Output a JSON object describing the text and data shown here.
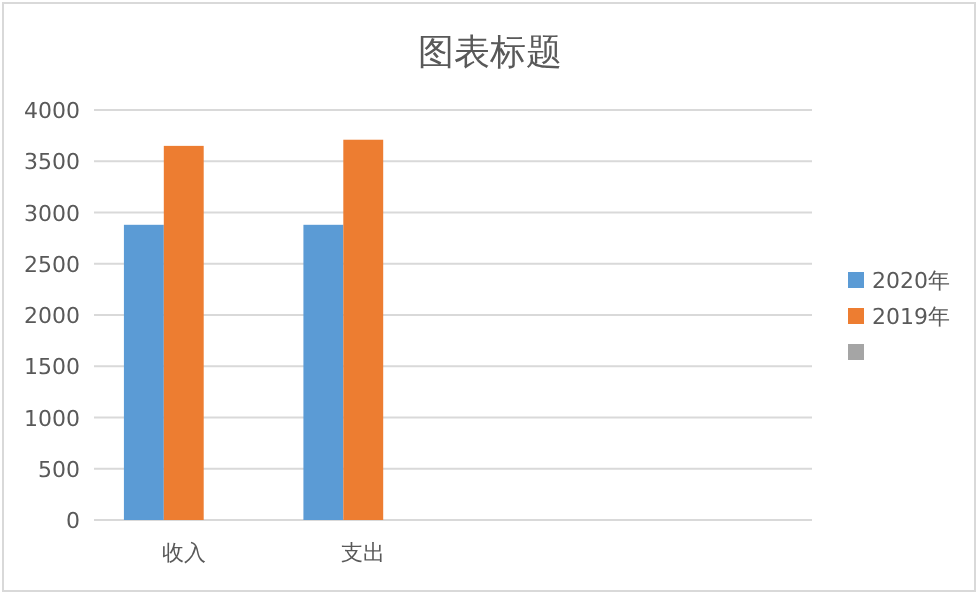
{
  "chart_data": {
    "type": "bar",
    "title": "图表标题",
    "categories": [
      "收入",
      "支出",
      null,
      null
    ],
    "series": [
      {
        "name": "2020年",
        "color": "#5b9bd5",
        "values": [
          2880,
          2880,
          null,
          null
        ]
      },
      {
        "name": "2019年",
        "color": "#ed7d31",
        "values": [
          3650,
          3710,
          null,
          null
        ]
      },
      {
        "color": "#a5a5a5",
        "values": [
          null,
          null,
          null,
          null
        ]
      }
    ],
    "ylim": [
      0,
      4000
    ],
    "yticks": [
      0,
      500,
      1000,
      1500,
      2000,
      2500,
      3000,
      3500,
      4000
    ],
    "grid": "y",
    "legend": "right"
  }
}
